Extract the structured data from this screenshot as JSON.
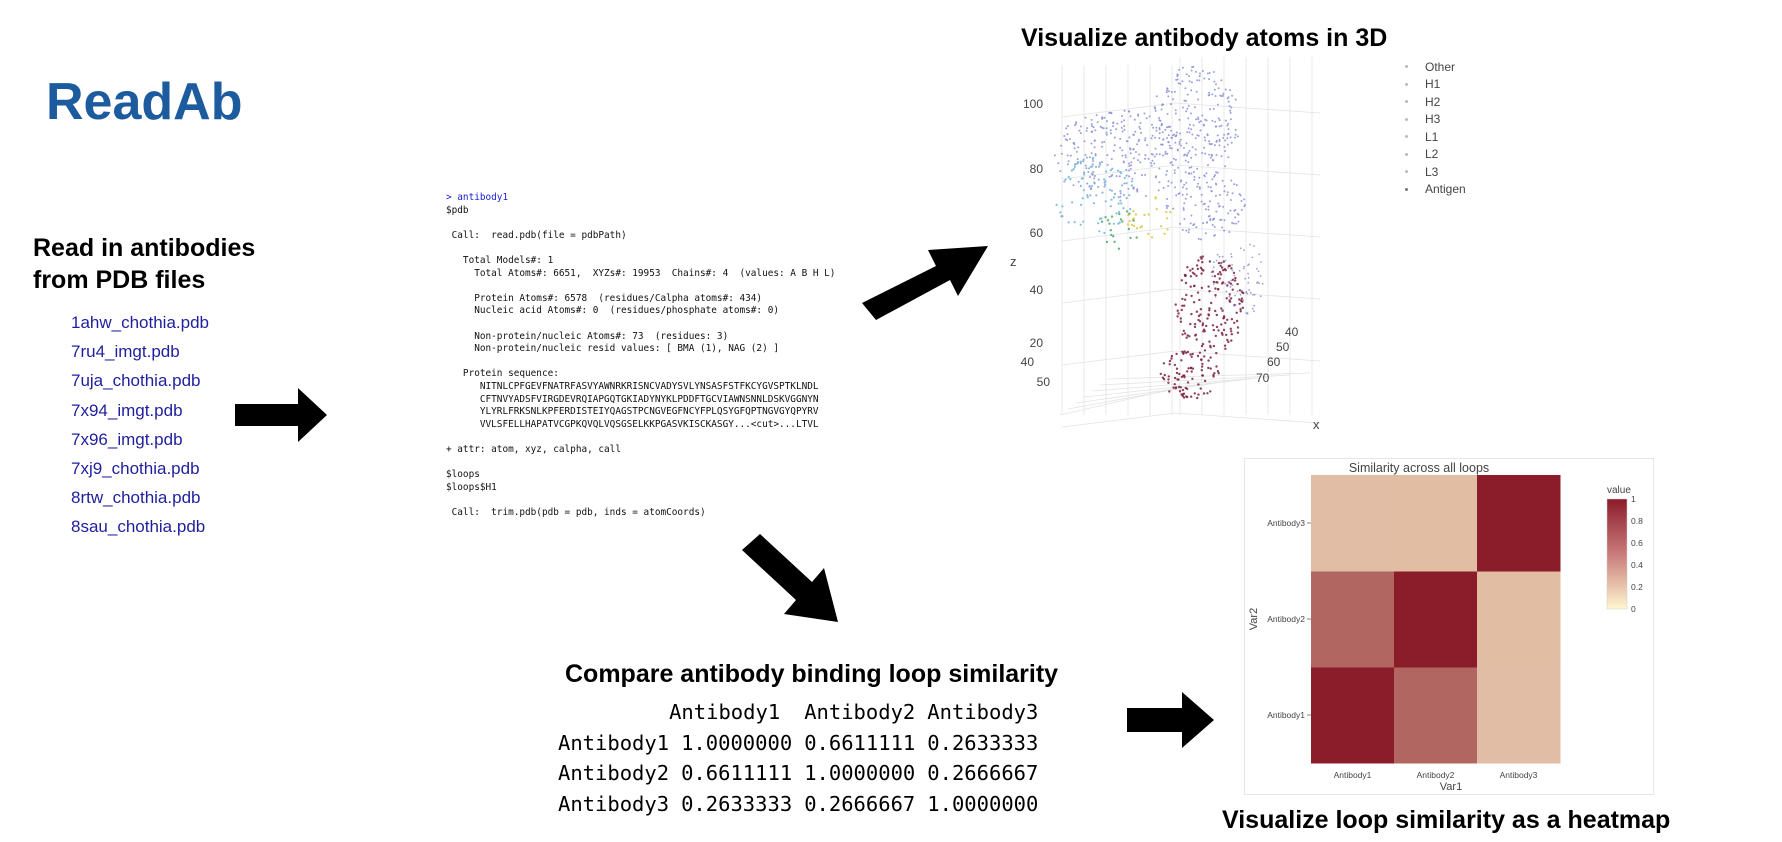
{
  "title": "ReadAb",
  "read_section": {
    "heading_line1": "Read in antibodies",
    "heading_line2": "from PDB files",
    "files": [
      "1ahw_chothia.pdb",
      "7ru4_imgt.pdb",
      "7uja_chothia.pdb",
      "7x94_imgt.pdb",
      "7x96_imgt.pdb",
      "7xj9_chothia.pdb",
      "8rtw_chothia.pdb",
      "8sau_chothia.pdb"
    ]
  },
  "console": {
    "prompt": "> antibody1",
    "lines": [
      "$pdb",
      "",
      " Call:  read.pdb(file = pdbPath)",
      "",
      "   Total Models#: 1",
      "     Total Atoms#: 6651,  XYZs#: 19953  Chains#: 4  (values: A B H L)",
      "",
      "     Protein Atoms#: 6578  (residues/Calpha atoms#: 434)",
      "     Nucleic acid Atoms#: 0  (residues/phosphate atoms#: 0)",
      "",
      "     Non-protein/nucleic Atoms#: 73  (residues: 3)",
      "     Non-protein/nucleic resid values: [ BMA (1), NAG (2) ]",
      "",
      "   Protein sequence:",
      "      NITNLCPFGEVFNATRFASVYAWNRKRISNCVADYSVLYNSASFSTFKCYGVSPTKLNDL",
      "      CFTNVYADSFVIRGDEVRQIAPGQTGKIADYNYKLPDDFTGCVIAWNSNNLDSKVGGNYN",
      "      YLYRLFRKSNLKPFERDISTEIYQAGSTPCNGVEGFNCYFPLQSYGFQPTNGVGYQPYRV",
      "      VVLSFELLHAPATVCGPKQVQLVQSGSELKKPGASVKISCKASGY...<cut>...LTVL",
      "",
      "+ attr: atom, xyz, calpha, call",
      "",
      "$loops",
      "$loops$H1",
      "",
      " Call:  trim.pdb(pdb = pdb, inds = atomCoords)"
    ]
  },
  "viz3d": {
    "heading": "Visualize antibody atoms in 3D",
    "z_axis_label": "z",
    "x_axis_label": "x",
    "z_ticks": [
      "100",
      "80",
      "60",
      "40",
      "20"
    ],
    "y_ticks": [
      "40",
      "50"
    ],
    "x_ticks": [
      "40",
      "50",
      "60",
      "70"
    ],
    "legend": [
      {
        "label": "Other",
        "color": "#bbbbbb"
      },
      {
        "label": "H1",
        "color": "#bbbbbb"
      },
      {
        "label": "H2",
        "color": "#bbbbbb"
      },
      {
        "label": "H3",
        "color": "#bbbbbb"
      },
      {
        "label": "L1",
        "color": "#bbbbbb"
      },
      {
        "label": "L2",
        "color": "#bbbbbb"
      },
      {
        "label": "L3",
        "color": "#bbbbbb"
      },
      {
        "label": "Antigen",
        "color": "#777777"
      }
    ],
    "colors": {
      "other": "#8b8fd6",
      "h_loops": "#6cb4d8",
      "yellow": "#d9c94a",
      "green": "#4aa86b",
      "antigen": "#7a2040"
    }
  },
  "compare": {
    "heading": "Compare antibody binding loop similarity",
    "columns": [
      "Antibody1",
      "Antibody2",
      "Antibody3"
    ],
    "rows": [
      {
        "name": "Antibody1",
        "values": [
          "1.0000000",
          "0.6611111",
          "0.2633333"
        ]
      },
      {
        "name": "Antibody2",
        "values": [
          "0.6611111",
          "1.0000000",
          "0.2666667"
        ]
      },
      {
        "name": "Antibody3",
        "values": [
          "0.2633333",
          "0.2666667",
          "1.0000000"
        ]
      }
    ]
  },
  "heatmap_heading": "Visualize loop similarity as a heatmap",
  "chart_data": {
    "type": "heatmap",
    "title": "Similarity across all loops",
    "xlabel": "Var1",
    "ylabel": "Var2",
    "x": [
      "Antibody1",
      "Antibody2",
      "Antibody3"
    ],
    "y": [
      "Antibody1",
      "Antibody2",
      "Antibody3"
    ],
    "z": [
      [
        1.0,
        0.6611111,
        0.2633333
      ],
      [
        0.6611111,
        1.0,
        0.2666667
      ],
      [
        0.2633333,
        0.2666667,
        1.0
      ]
    ],
    "colorbar_title": "value",
    "colorbar_ticks": [
      "1",
      "0.8",
      "0.6",
      "0.4",
      "0.2",
      "0"
    ],
    "colorscale": [
      "#fff7cf",
      "#8b1c2a"
    ]
  }
}
